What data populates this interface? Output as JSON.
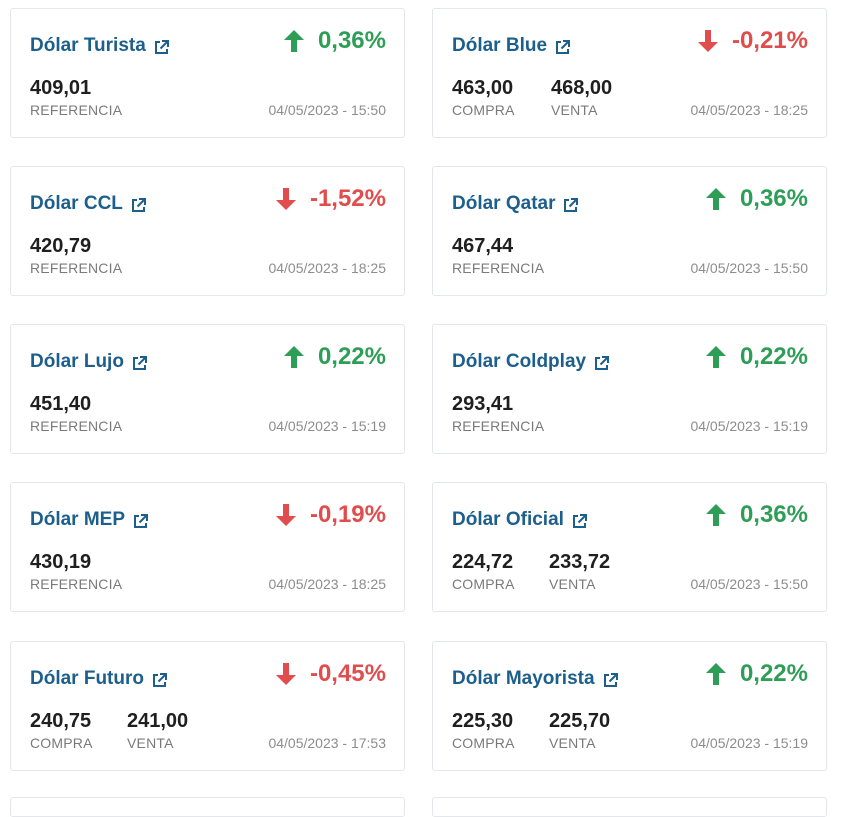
{
  "cards": [
    {
      "title": "Dólar Turista",
      "direction": "up",
      "change": "0,36%",
      "values": [
        {
          "amount": "409,01",
          "label": "REFERENCIA"
        }
      ],
      "timestamp": "04/05/2023 - 15:50"
    },
    {
      "title": "Dólar Blue",
      "direction": "down",
      "change": "-0,21%",
      "values": [
        {
          "amount": "463,00",
          "label": "COMPRA"
        },
        {
          "amount": "468,00",
          "label": "VENTA"
        }
      ],
      "timestamp": "04/05/2023 - 18:25"
    },
    {
      "title": "Dólar CCL",
      "direction": "down",
      "change": "-1,52%",
      "values": [
        {
          "amount": "420,79",
          "label": "REFERENCIA"
        }
      ],
      "timestamp": "04/05/2023 - 18:25"
    },
    {
      "title": "Dólar Qatar",
      "direction": "up",
      "change": "0,36%",
      "values": [
        {
          "amount": "467,44",
          "label": "REFERENCIA"
        }
      ],
      "timestamp": "04/05/2023 - 15:50"
    },
    {
      "title": "Dólar Lujo",
      "direction": "up",
      "change": "0,22%",
      "values": [
        {
          "amount": "451,40",
          "label": "REFERENCIA"
        }
      ],
      "timestamp": "04/05/2023 - 15:19"
    },
    {
      "title": "Dólar Coldplay",
      "direction": "up",
      "change": "0,22%",
      "values": [
        {
          "amount": "293,41",
          "label": "REFERENCIA"
        }
      ],
      "timestamp": "04/05/2023 - 15:19"
    },
    {
      "title": "Dólar MEP",
      "direction": "down",
      "change": "-0,19%",
      "values": [
        {
          "amount": "430,19",
          "label": "REFERENCIA"
        }
      ],
      "timestamp": "04/05/2023 - 18:25"
    },
    {
      "title": "Dólar Oficial",
      "direction": "up",
      "change": "0,36%",
      "values": [
        {
          "amount": "224,72",
          "label": "COMPRA"
        },
        {
          "amount": "233,72",
          "label": "VENTA"
        }
      ],
      "timestamp": "04/05/2023 - 15:50"
    },
    {
      "title": "Dólar Futuro",
      "direction": "down",
      "change": "-0,45%",
      "values": [
        {
          "amount": "240,75",
          "label": "COMPRA"
        },
        {
          "amount": "241,00",
          "label": "VENTA"
        }
      ],
      "timestamp": "04/05/2023 - 17:53"
    },
    {
      "title": "Dólar Mayorista",
      "direction": "up",
      "change": "0,22%",
      "values": [
        {
          "amount": "225,30",
          "label": "COMPRA"
        },
        {
          "amount": "225,70",
          "label": "VENTA"
        }
      ],
      "timestamp": "04/05/2023 - 15:19"
    }
  ],
  "icons": {
    "title_link": "external-link-icon",
    "up": "arrow-up-icon",
    "down": "arrow-down-icon"
  },
  "colors": {
    "title": "#1d5f8c",
    "up": "#2e9e57",
    "down": "#e14c4c",
    "border": "#e3e6ea"
  }
}
